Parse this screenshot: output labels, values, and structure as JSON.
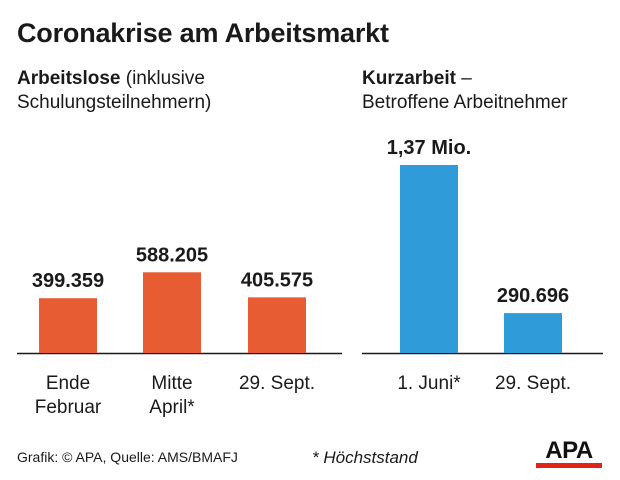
{
  "title": "Coronakrise am Arbeitsmarkt",
  "left_panel": {
    "subtitle_bold": "Arbeitslose",
    "subtitle_line1_rest": " (inklusive",
    "subtitle_line2": "Schulungsteilnehmern)"
  },
  "right_panel": {
    "subtitle_bold": "Kurzarbeit",
    "subtitle_line1_rest": " –",
    "subtitle_line2": "Betroffene Arbeitnehmer"
  },
  "chart_data": [
    {
      "type": "bar",
      "title": "Arbeitslose (inklusive Schulungsteilnehmern)",
      "categories": [
        [
          "Ende",
          "Februar"
        ],
        [
          "Mitte",
          "April*"
        ],
        [
          "29. Sept."
        ]
      ],
      "values": [
        399359,
        588205,
        405575
      ],
      "value_labels": [
        "399.359",
        "588.205",
        "405.575"
      ],
      "color": "#e85c33"
    },
    {
      "type": "bar",
      "title": "Kurzarbeit – Betroffene Arbeitnehmer",
      "categories": [
        [
          "1. Juni*"
        ],
        [
          "29. Sept."
        ]
      ],
      "values": [
        1370000,
        290696
      ],
      "value_labels": [
        "1,37 Mio.",
        "290.696"
      ],
      "color": "#2f9bd8"
    }
  ],
  "footer": {
    "source": "Grafik: © APA, Quelle: AMS/BMAFJ",
    "note": "* Höchststand"
  },
  "logo": {
    "text": "APA",
    "bar_color": "#e2231a"
  }
}
